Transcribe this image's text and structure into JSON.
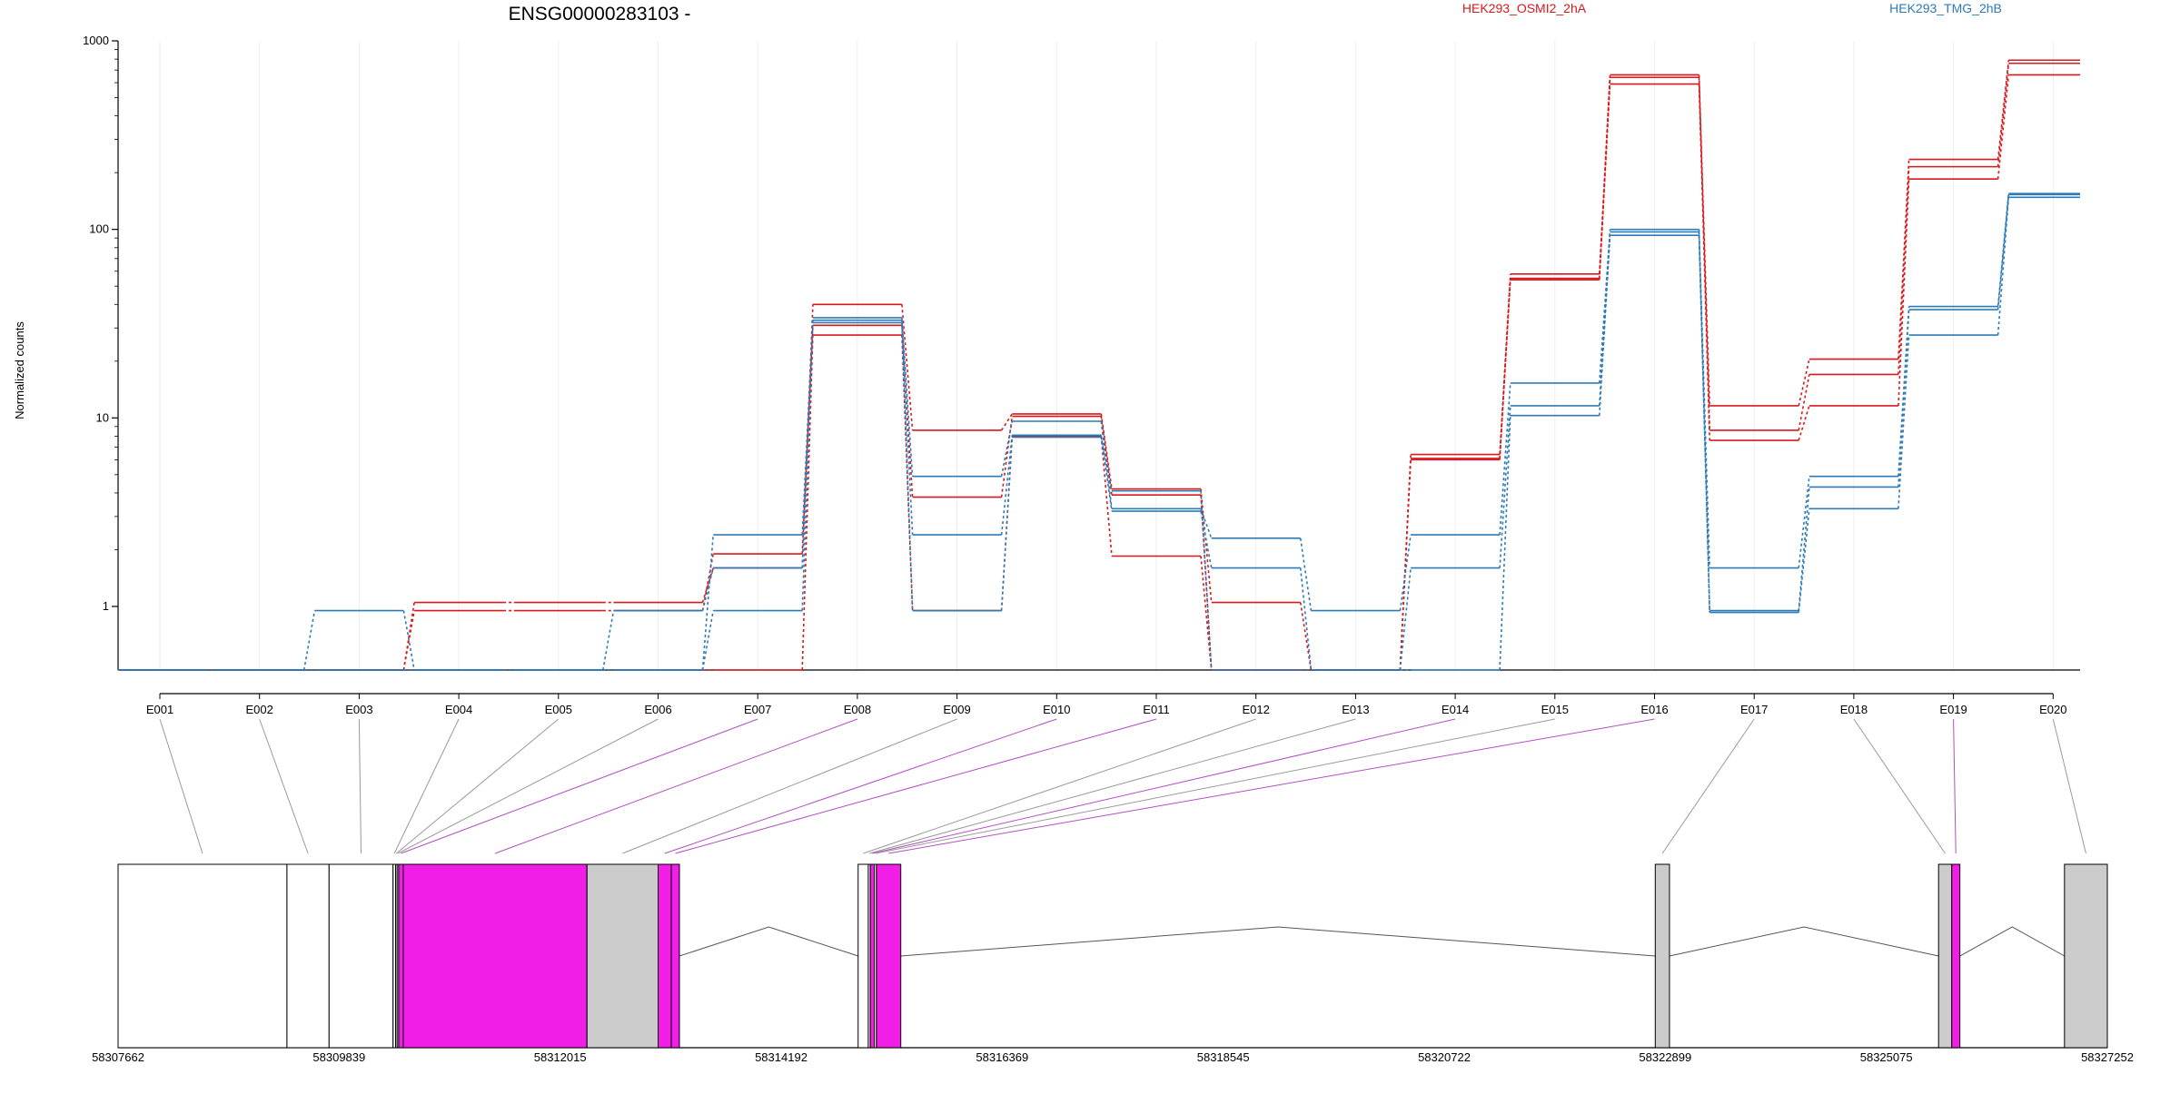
{
  "chart_data": {
    "type": "line",
    "title": "ENSG00000283103 -",
    "ylabel": "Normalized counts",
    "yscale": "log",
    "ylim": [
      0.46,
      1000
    ],
    "yticks": [
      1,
      10,
      100,
      1000
    ],
    "ytick_labels": [
      "1",
      "10",
      "100",
      "1000"
    ],
    "categories": [
      "E001",
      "E002",
      "E003",
      "E004",
      "E005",
      "E006",
      "E007",
      "E008",
      "E009",
      "E010",
      "E011",
      "E012",
      "E013",
      "E014",
      "E015",
      "E016",
      "E017",
      "E018",
      "E019",
      "E020"
    ],
    "legend": [
      {
        "name": "HEK293_OSMI2_2hA",
        "color": "#d7191c"
      },
      {
        "name": "HEK293_TMG_2hB",
        "color": "#2c7bb6"
      }
    ],
    "series": [
      {
        "group": "HEK293_OSMI2_2hA",
        "values": [
          0.46,
          0.46,
          0.46,
          1.05,
          1.05,
          1.05,
          1.6,
          40,
          8.6,
          10.5,
          4.2,
          1.05,
          0.46,
          6.4,
          58,
          660,
          11.6,
          20.5,
          235,
          790
        ]
      },
      {
        "group": "HEK293_OSMI2_2hA",
        "values": [
          0.46,
          0.46,
          0.46,
          0.95,
          0.95,
          0.95,
          1.9,
          31,
          3.8,
          10.2,
          3.9,
          0.46,
          0.46,
          6.1,
          55,
          640,
          8.6,
          17,
          215,
          760
        ]
      },
      {
        "group": "HEK293_OSMI2_2hA",
        "values": [
          0.46,
          0.46,
          0.46,
          0.46,
          0.46,
          0.46,
          0.46,
          27.5,
          0.95,
          8,
          1.85,
          0.46,
          0.46,
          6.0,
          54,
          590,
          7.6,
          11.6,
          185,
          660
        ]
      },
      {
        "group": "HEK293_TMG_2hB",
        "values": [
          0.46,
          0.46,
          0.95,
          0.46,
          0.46,
          0.46,
          2.4,
          34,
          4.9,
          9.6,
          3.3,
          2.3,
          0.95,
          2.4,
          15.3,
          100,
          1.6,
          4.9,
          39,
          155
        ]
      },
      {
        "group": "HEK293_TMG_2hB",
        "values": [
          0.46,
          0.46,
          0.46,
          0.46,
          0.46,
          0.95,
          1.6,
          33,
          2.4,
          8.1,
          3.2,
          1.6,
          0.46,
          1.6,
          11.6,
          97,
          0.95,
          4.3,
          37.5,
          153
        ]
      },
      {
        "group": "HEK293_TMG_2hB",
        "values": [
          0.46,
          0.46,
          0.46,
          0.46,
          0.46,
          0.46,
          0.95,
          32,
          0.95,
          7.9,
          4.1,
          0.46,
          0.46,
          0.46,
          10.3,
          93,
          0.93,
          3.3,
          27.5,
          148
        ]
      }
    ],
    "genomic_axis": {
      "tick_labels": [
        "58307662",
        "58309839",
        "58312015",
        "58314192",
        "58316369",
        "58318545",
        "58320722",
        "58322899",
        "58325075",
        "58327252"
      ],
      "range": [
        58307662,
        58327252
      ]
    },
    "exons": [
      {
        "id": "E001",
        "start": 58307662,
        "end": 58309325,
        "type": "noncoding"
      },
      {
        "id": "E002",
        "start": 58309325,
        "end": 58309740,
        "type": "noncoding"
      },
      {
        "id": "E003",
        "start": 58309740,
        "end": 58310370,
        "type": "noncoding"
      },
      {
        "id": "E004",
        "start": 58310370,
        "end": 58310395,
        "type": "noncoding"
      },
      {
        "id": "E005",
        "start": 58310395,
        "end": 58310410,
        "type": "noncoding"
      },
      {
        "id": "E006",
        "start": 58310410,
        "end": 58310425,
        "type": "noncoding"
      },
      {
        "id": "E007",
        "start": 58310425,
        "end": 58310470,
        "type": "coding"
      },
      {
        "id": "E008",
        "start": 58310470,
        "end": 58312280,
        "type": "coding"
      },
      {
        "id": "E009",
        "start": 58312280,
        "end": 58312980,
        "type": "noncoding"
      },
      {
        "id": "E010",
        "start": 58312980,
        "end": 58313110,
        "type": "coding"
      },
      {
        "id": "E011",
        "start": 58313110,
        "end": 58313190,
        "type": "coding"
      },
      {
        "id": "E012",
        "start": 58314950,
        "end": 58315050,
        "type": "noncoding"
      },
      {
        "id": "E013",
        "start": 58315050,
        "end": 58315070,
        "type": "noncoding"
      },
      {
        "id": "E014",
        "start": 58315070,
        "end": 58315110,
        "type": "coding"
      },
      {
        "id": "E015",
        "start": 58315110,
        "end": 58315130,
        "type": "noncoding"
      },
      {
        "id": "E016",
        "start": 58315130,
        "end": 58315370,
        "type": "coding"
      },
      {
        "id": "E017",
        "start": 58322800,
        "end": 58322940,
        "type": "noncoding"
      },
      {
        "id": "E018",
        "start": 58325590,
        "end": 58325720,
        "type": "noncoding"
      },
      {
        "id": "E019",
        "start": 58325720,
        "end": 58325800,
        "type": "coding"
      },
      {
        "id": "E020",
        "start": 58326830,
        "end": 58327252,
        "type": "noncoding"
      }
    ],
    "grid": false
  },
  "colors": {
    "osmi": "#d7191c",
    "tmg": "#2c7bb6",
    "coding": "#f01ee6",
    "noncoding_gray": "#cccccc",
    "link_coding": "#b050c0",
    "link_noncoding": "#9a9a9a"
  }
}
